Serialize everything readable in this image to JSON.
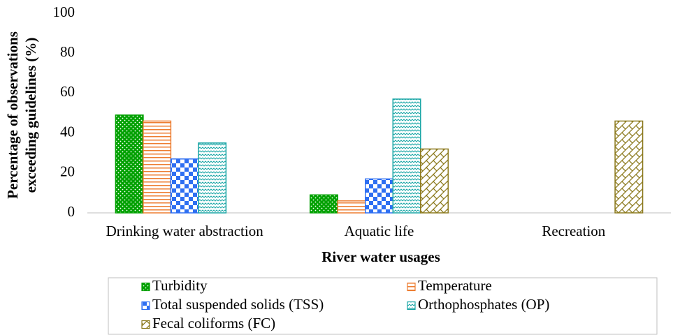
{
  "chart_data": {
    "type": "bar",
    "ylabel": [
      "Percentage of observations",
      "exceeding guidelines (%)"
    ],
    "xlabel": "River water usages",
    "categories": [
      "Drinking water abstraction",
      "Aquatic life",
      "Recreation"
    ],
    "series": [
      {
        "name": "Turbidity",
        "color": "#00a000",
        "pattern": "dots",
        "values": [
          49,
          9,
          null
        ]
      },
      {
        "name": "Temperature",
        "color": "#ed7d31",
        "pattern": "hlines",
        "values": [
          46,
          6,
          null
        ]
      },
      {
        "name": "Total suspended solids (TSS)",
        "color": "#2e6ff2",
        "pattern": "checker",
        "values": [
          27,
          17,
          null
        ]
      },
      {
        "name": "Orthophosphates (OP)",
        "color": "#1aa6a6",
        "pattern": "waves",
        "values": [
          35,
          57,
          null
        ]
      },
      {
        "name": "Fecal coliforms (FC)",
        "color": "#8c7a1e",
        "pattern": "crosshatch",
        "values": [
          null,
          32,
          46
        ]
      }
    ],
    "ylim": [
      0,
      100
    ],
    "yticks": [
      0,
      20,
      40,
      60,
      80,
      100
    ],
    "grid": false,
    "legend": "bottom"
  }
}
